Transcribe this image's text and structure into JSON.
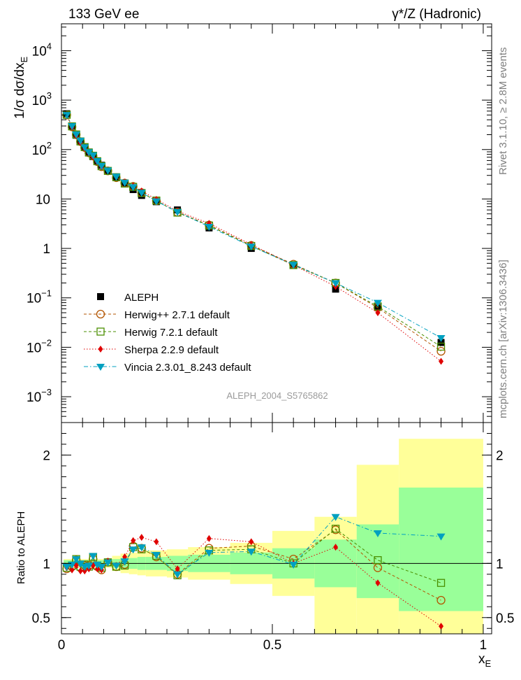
{
  "header": {
    "left": "133 GeV ee",
    "right": "γ*/Z (Hadronic)"
  },
  "side_labels": {
    "top": "Rivet 3.1.10, ≥ 2.8M events",
    "bottom": "mcplots.cern.ch [arXiv:1306.3436]"
  },
  "watermark": "ALEPH_2004_S5765862",
  "axes": {
    "main_ylabel": "1/σ dσ/dx_E",
    "ratio_ylabel": "Ratio to ALEPH",
    "xlabel": "x_E",
    "x_ticks": [
      {
        "value": 0,
        "label": "0"
      },
      {
        "value": 0.5,
        "label": "0.5"
      },
      {
        "value": 1,
        "label": "1"
      }
    ],
    "main_y_ticks": [
      {
        "value": 0.001,
        "base": "10",
        "exp": "−3"
      },
      {
        "value": 0.01,
        "base": "10",
        "exp": "−2"
      },
      {
        "value": 0.1,
        "base": "10",
        "exp": "−1"
      },
      {
        "value": 1,
        "base": "1",
        "exp": ""
      },
      {
        "value": 10,
        "base": "10",
        "exp": ""
      },
      {
        "value": 100,
        "base": "10",
        "exp": "2"
      },
      {
        "value": 1000,
        "base": "10",
        "exp": "3"
      },
      {
        "value": 10000,
        "base": "10",
        "exp": "4"
      }
    ],
    "ratio_y_ticks": [
      {
        "value": 0.5,
        "label": "0.5"
      },
      {
        "value": 1,
        "label": "1"
      },
      {
        "value": 2,
        "label": "2"
      }
    ]
  },
  "chart_data": {
    "type": "scatter",
    "x": [
      0.0125,
      0.025,
      0.035,
      0.045,
      0.055,
      0.065,
      0.075,
      0.085,
      0.095,
      0.11,
      0.13,
      0.15,
      0.17,
      0.19,
      0.225,
      0.275,
      0.35,
      0.45,
      0.55,
      0.65,
      0.75,
      0.9
    ],
    "xlim": [
      0,
      1.02
    ],
    "main_ylim": [
      0.0003,
      35000
    ],
    "main_yscale": "log",
    "ratio_ylim": [
      0.35,
      2.3
    ],
    "bands": {
      "bins": [
        0.005,
        0.02,
        0.03,
        0.04,
        0.05,
        0.06,
        0.07,
        0.08,
        0.09,
        0.1,
        0.12,
        0.14,
        0.16,
        0.18,
        0.2,
        0.25,
        0.3,
        0.4,
        0.5,
        0.6,
        0.7,
        0.8,
        1.0
      ],
      "inner_lo": [
        0.97,
        0.97,
        0.97,
        0.97,
        0.97,
        0.97,
        0.97,
        0.97,
        0.97,
        0.97,
        0.96,
        0.95,
        0.95,
        0.94,
        0.94,
        0.93,
        0.92,
        0.9,
        0.86,
        0.78,
        0.68,
        0.56
      ],
      "inner_hi": [
        1.03,
        1.03,
        1.03,
        1.03,
        1.03,
        1.03,
        1.03,
        1.03,
        1.03,
        1.03,
        1.04,
        1.05,
        1.05,
        1.06,
        1.06,
        1.07,
        1.08,
        1.1,
        1.14,
        1.22,
        1.36,
        1.7
      ],
      "outer_lo": [
        0.96,
        0.96,
        0.96,
        0.96,
        0.96,
        0.96,
        0.96,
        0.96,
        0.96,
        0.96,
        0.93,
        0.91,
        0.9,
        0.89,
        0.88,
        0.87,
        0.85,
        0.81,
        0.7,
        0.35,
        0.35,
        0.35
      ],
      "outer_hi": [
        1.04,
        1.04,
        1.04,
        1.04,
        1.04,
        1.04,
        1.04,
        1.04,
        1.04,
        1.04,
        1.07,
        1.09,
        1.1,
        1.11,
        1.12,
        1.13,
        1.15,
        1.19,
        1.3,
        1.43,
        1.91,
        2.15
      ]
    },
    "legend_position": "lower-left",
    "series": [
      {
        "name": "ALEPH",
        "marker": "square",
        "color": "#000000",
        "line": "none",
        "y": [
          530,
          300,
          195,
          148,
          113,
          89,
          72,
          59,
          48,
          37,
          28,
          21,
          15.5,
          11.8,
          8.8,
          6.0,
          2.6,
          1.0,
          0.46,
          0.15,
          0.065,
          0.0125
        ],
        "ratio": [
          1,
          1,
          1,
          1,
          1,
          1,
          1,
          1,
          1,
          1,
          1,
          1,
          1,
          1,
          1,
          1,
          1,
          1,
          1,
          1,
          1,
          1
        ]
      },
      {
        "name": "Herwig++ 2.7.1 default",
        "marker": "circle-open",
        "color": "#b35500",
        "line": "dashed",
        "y": [
          500,
          288,
          200,
          145,
          110,
          86,
          74,
          57,
          45,
          37,
          27,
          21,
          18,
          13.4,
          9.2,
          5.4,
          2.97,
          1.15,
          0.48,
          0.2,
          0.063,
          0.0083
        ],
        "ratio": [
          0.95,
          0.97,
          1.03,
          0.96,
          0.98,
          0.98,
          1.04,
          0.97,
          0.94,
          1.01,
          0.97,
          0.99,
          1.16,
          1.14,
          1.06,
          0.9,
          1.14,
          1.16,
          1.04,
          1.31,
          0.96,
          0.66
        ]
      },
      {
        "name": "Herwig 7.2.1 default",
        "marker": "square-open",
        "color": "#4a8f00",
        "line": "dashed",
        "y": [
          505,
          294,
          202,
          146,
          112,
          87,
          75,
          58,
          46,
          37,
          27.5,
          20.5,
          17.6,
          13.2,
          9.3,
          5.3,
          2.9,
          1.12,
          0.46,
          0.2,
          0.067,
          0.0103
        ],
        "ratio": [
          0.96,
          0.98,
          1.04,
          0.97,
          0.99,
          0.97,
          1.06,
          0.98,
          0.96,
          1.01,
          0.97,
          0.98,
          1.15,
          1.13,
          1.07,
          0.89,
          1.12,
          1.13,
          1.0,
          1.32,
          1.03,
          0.82
        ]
      },
      {
        "name": "Sherpa 2.2.9 default",
        "marker": "diamond",
        "color": "#e00000",
        "line": "dotted",
        "y": [
          505,
          282,
          190,
          138,
          105,
          85,
          70,
          56,
          45,
          38,
          28,
          22,
          18.5,
          14.5,
          9.8,
          5.7,
          3.2,
          1.2,
          0.46,
          0.17,
          0.05,
          0.0052
        ],
        "ratio": [
          0.96,
          0.94,
          0.98,
          0.93,
          0.93,
          0.95,
          0.98,
          0.95,
          0.94,
          1.02,
          0.98,
          1.06,
          1.21,
          1.24,
          1.2,
          0.95,
          1.23,
          1.2,
          1.0,
          1.15,
          0.82,
          0.42
        ]
      },
      {
        "name": "Vincia 2.3.01_8.243 default",
        "marker": "triangle-down",
        "color": "#00a0c0",
        "line": "dashdot",
        "y": [
          505,
          300,
          204,
          152,
          112,
          89,
          77,
          59,
          47,
          38,
          28.5,
          21.5,
          17.5,
          13.5,
          9.0,
          5.5,
          2.75,
          1.1,
          0.47,
          0.2,
          0.08,
          0.0155
        ],
        "ratio": [
          0.97,
          0.99,
          1.04,
          1.0,
          0.97,
          0.98,
          1.07,
          0.99,
          0.97,
          1.01,
          0.98,
          1.02,
          1.13,
          1.15,
          1.08,
          0.9,
          1.1,
          1.11,
          0.99,
          1.43,
          1.28,
          1.25
        ]
      }
    ]
  }
}
